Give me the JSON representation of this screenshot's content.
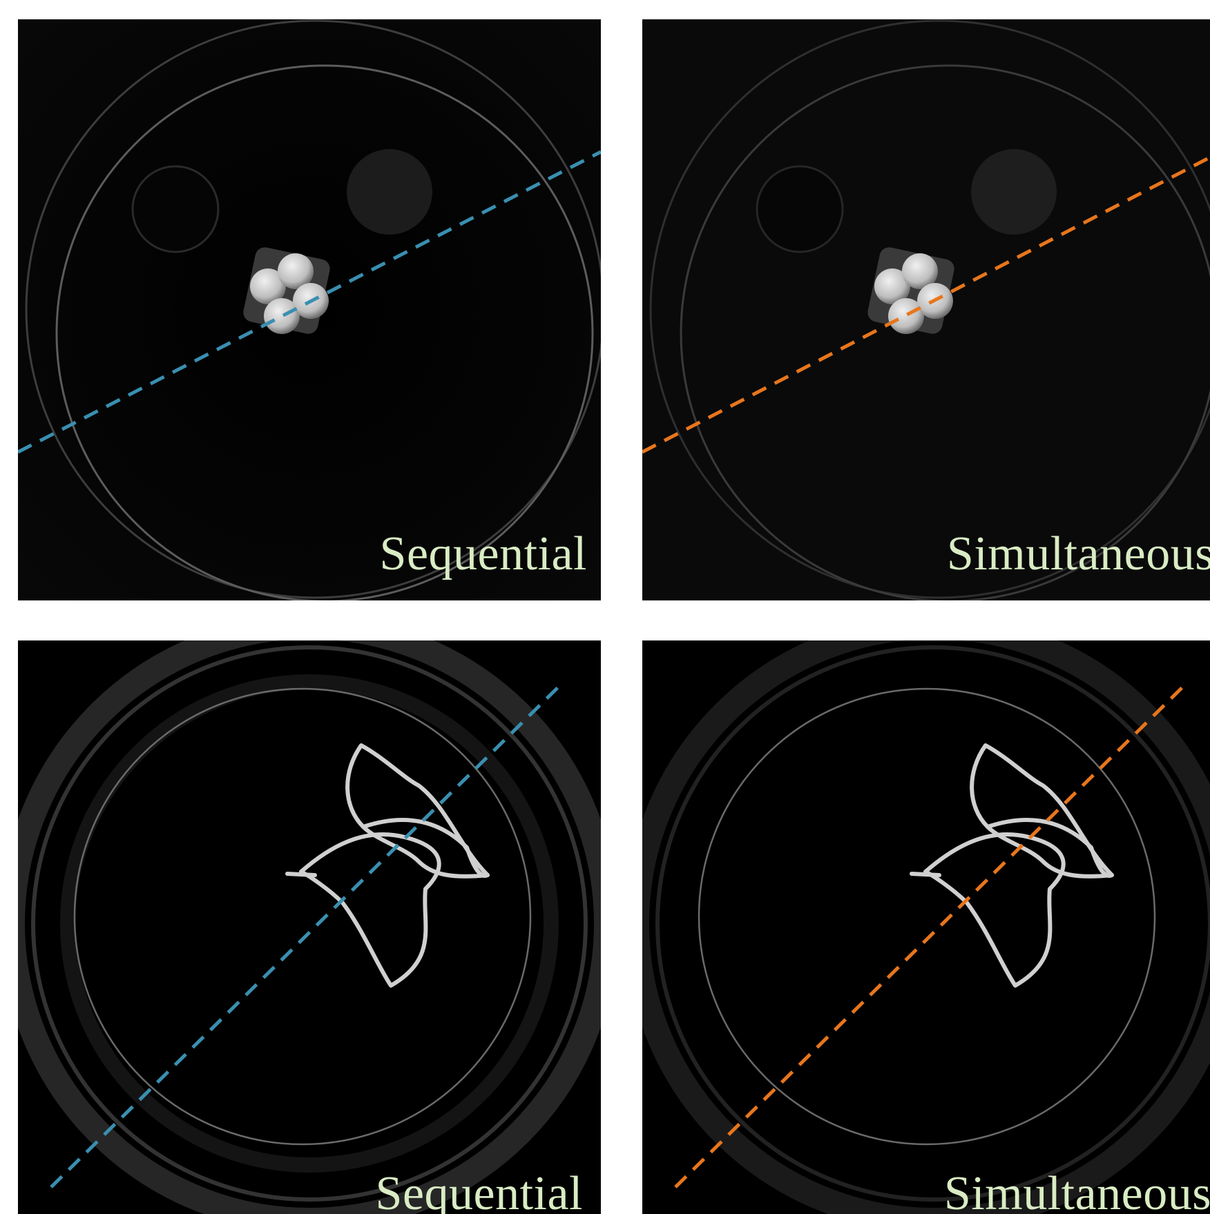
{
  "colors": {
    "sequential_line": "#3a8fb0",
    "simultaneous_line": "#e8761c",
    "label_text": "#d9ecc4"
  },
  "panels": {
    "top_left": {
      "label": "Sequential"
    },
    "top_right": {
      "label": "Simultaneous"
    },
    "bottom_left": {
      "label": "Sequential"
    },
    "bottom_right": {
      "label": "Simultaneous"
    }
  }
}
